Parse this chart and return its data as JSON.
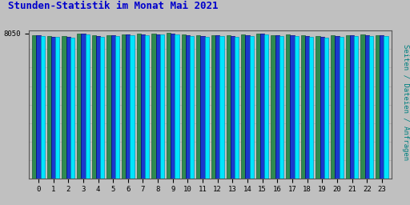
{
  "title": "Stunden-Statistik im Monat Mai 2021",
  "title_color": "#0000cc",
  "ylabel": "Seiten / Dateien / Anfragen",
  "ylabel_color": "#008080",
  "hours": [
    0,
    1,
    2,
    3,
    4,
    5,
    6,
    7,
    8,
    9,
    10,
    11,
    12,
    13,
    14,
    15,
    16,
    17,
    18,
    19,
    20,
    21,
    22,
    23
  ],
  "seiten": [
    7960,
    7920,
    7890,
    8055,
    7930,
    7970,
    8000,
    8025,
    8035,
    8065,
    7985,
    7960,
    7965,
    7950,
    7985,
    8055,
    7965,
    7975,
    7945,
    7895,
    7955,
    7965,
    7985,
    7965
  ],
  "dateien": [
    7940,
    7880,
    7850,
    8025,
    7905,
    7945,
    7975,
    7995,
    8010,
    8035,
    7965,
    7928,
    7935,
    7912,
    7955,
    8025,
    7935,
    7942,
    7915,
    7862,
    7922,
    7932,
    7955,
    7932
  ],
  "anfragen": [
    7895,
    7845,
    7805,
    7985,
    7865,
    7905,
    7945,
    7965,
    7978,
    7995,
    7925,
    7882,
    7892,
    7872,
    7915,
    7982,
    7892,
    7905,
    7872,
    7825,
    7882,
    7892,
    7912,
    7892
  ],
  "bar_width": 0.28,
  "color_seiten": "#2e8b50",
  "color_dateien": "#1a3acd",
  "color_anfragen": "#00e5ff",
  "edge_seiten": "#1a5e30",
  "edge_dateien": "#000080",
  "edge_anfragen": "#0099bb",
  "background_color": "#c0c0c0",
  "ylim_min": 0,
  "ylim_max": 8200,
  "ytick_val": 8050,
  "grid_color": "#aaaaaa",
  "n_gridlines": 8
}
